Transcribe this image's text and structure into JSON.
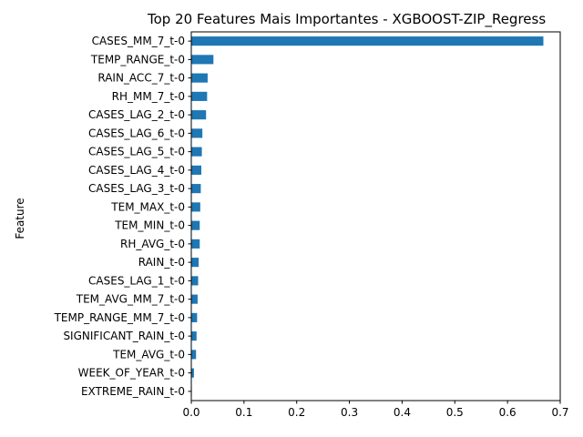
{
  "chart_data": {
    "type": "bar",
    "orientation": "horizontal",
    "title": "Top 20 Features Mais Importantes - XGBOOST-ZIP_Regress",
    "xlabel": "",
    "ylabel": "Feature",
    "xlim": [
      0,
      0.7
    ],
    "xticks": [
      "0.0",
      "0.1",
      "0.2",
      "0.3",
      "0.4",
      "0.5",
      "0.6",
      "0.7"
    ],
    "bar_color": "#1f77b4",
    "grid": false,
    "categories": [
      "CASES_MM_7_t-0",
      "TEMP_RANGE_t-0",
      "RAIN_ACC_7_t-0",
      "RH_MM_7_t-0",
      "CASES_LAG_2_t-0",
      "CASES_LAG_6_t-0",
      "CASES_LAG_5_t-0",
      "CASES_LAG_4_t-0",
      "CASES_LAG_3_t-0",
      "TEM_MAX_t-0",
      "TEM_MIN_t-0",
      "RH_AVG_t-0",
      "RAIN_t-0",
      "CASES_LAG_1_t-0",
      "TEM_AVG_MM_7_t-0",
      "TEMP_RANGE_MM_7_t-0",
      "SIGNIFICANT_RAIN_t-0",
      "TEM_AVG_t-0",
      "WEEK_OF_YEAR_t-0",
      "EXTREME_RAIN_t-0"
    ],
    "values": [
      0.668,
      0.042,
      0.031,
      0.03,
      0.028,
      0.021,
      0.02,
      0.019,
      0.018,
      0.017,
      0.016,
      0.016,
      0.014,
      0.013,
      0.012,
      0.011,
      0.01,
      0.009,
      0.005,
      0.001
    ]
  }
}
